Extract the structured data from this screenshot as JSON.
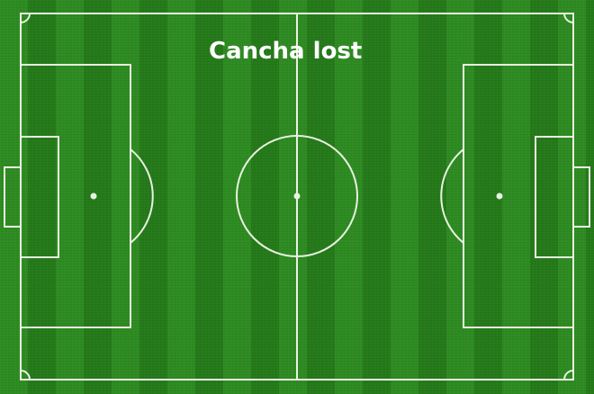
{
  "title": "Cancha lost",
  "colors": {
    "grass_light": "#2e8b22",
    "grass_dark": "#257a1a",
    "lines": "#e8f2e0",
    "title": "#ffffff"
  }
}
